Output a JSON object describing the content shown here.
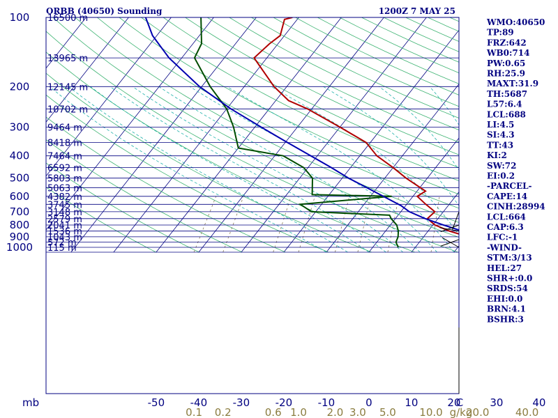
{
  "header": {
    "station": "ORBB (40650) Sounding",
    "time": "1200Z  7 MAY 25"
  },
  "colors": {
    "frame": "#000080",
    "text": "#000080",
    "isobar": "#000080",
    "isotherm": "#000080",
    "dry_adiabat": "#3cb371",
    "moist_adiabat": "#20b2aa",
    "mixing_ratio": "#8b7d5a",
    "temperature": "#b00000",
    "dewpoint": "#004d00",
    "parcel": "#0000b0",
    "wind": "#000000",
    "mixing_label": "#8b7d40"
  },
  "indices": [
    "WMO:40650",
    "TP:89",
    "FRZ:642",
    "WB0:714",
    "PW:0.65",
    "RH:25.9",
    "MAXT:31.9",
    "TH:5687",
    "L57:6.4",
    "LCL:688",
    "LI:4.5",
    "SI:4.3",
    "TT:43",
    "KI:2",
    "SW:72",
    "EI:0.2",
    "-PARCEL-",
    "CAPE:14",
    "CINH:28994",
    "LCL:664",
    "CAP:6.3",
    "LFC:-1",
    "-WIND-",
    "STM:3/13",
    "HEL:27",
    "SHR+:0.0",
    "SRDS:54",
    "EHI:0.0",
    "BRN:4.1",
    "BSHR:3"
  ],
  "chart_data": {
    "type": "line",
    "chart_kind": "skew-T log-P",
    "x_unit_label": "mb",
    "mixing_unit_label": "g/kg",
    "temperature_ticks": [
      "-50",
      "-40",
      "-30",
      "-20",
      "-10",
      "0",
      "10",
      "20",
      "30",
      "40",
      "C"
    ],
    "temperature_tick_values": [
      -50,
      -40,
      -30,
      -20,
      -10,
      0,
      10,
      20,
      30,
      40
    ],
    "pressure_ticks": [
      "100",
      "200",
      "300",
      "400",
      "500",
      "600",
      "700",
      "800",
      "900",
      "1000"
    ],
    "pressure_tick_values": [
      100,
      200,
      300,
      400,
      500,
      600,
      700,
      800,
      900,
      1000
    ],
    "pressure_range": [
      100,
      1050
    ],
    "mixing_ratio_labels": [
      {
        "text": "0.1",
        "value": 0.1
      },
      {
        "text": "0.2",
        "value": 0.2
      },
      {
        "text": "0.6",
        "value": 0.6
      },
      {
        "text": "1.0",
        "value": 1.0
      },
      {
        "text": "2.0",
        "value": 2.0
      },
      {
        "text": "3.0",
        "value": 3.0
      },
      {
        "text": "5.0",
        "value": 5.0
      },
      {
        "text": "10.0",
        "value": 10.0
      },
      {
        "text": "20.0",
        "value": 20.0
      },
      {
        "text": "40.0",
        "value": 40.0
      }
    ],
    "heights": [
      {
        "p": 100,
        "label": "16500 m"
      },
      {
        "p": 150,
        "label": "13965 m"
      },
      {
        "p": 200,
        "label": "12145 m"
      },
      {
        "p": 250,
        "label": "10702 m"
      },
      {
        "p": 300,
        "label": "9464 m"
      },
      {
        "p": 350,
        "label": "8418 m"
      },
      {
        "p": 400,
        "label": "7464 m"
      },
      {
        "p": 450,
        "label": "6592 m"
      },
      {
        "p": 500,
        "label": "5803 m"
      },
      {
        "p": 550,
        "label": "5063 m"
      },
      {
        "p": 600,
        "label": "4382 m"
      },
      {
        "p": 650,
        "label": "3745 m"
      },
      {
        "p": 700,
        "label": "3148 m"
      },
      {
        "p": 750,
        "label": "2579 m"
      },
      {
        "p": 800,
        "label": "2041 m"
      },
      {
        "p": 850,
        "label": "1536 m"
      },
      {
        "p": 900,
        "label": "1043 m"
      },
      {
        "p": 950,
        "label": "572 m"
      },
      {
        "p": 1000,
        "label": "115 m"
      }
    ],
    "series": [
      {
        "key": "temperature",
        "points": [
          [
            1000,
            34.5
          ],
          [
            990,
            31.5
          ],
          [
            950,
            26.5
          ],
          [
            900,
            20.5
          ],
          [
            850,
            15.0
          ],
          [
            800,
            10.5
          ],
          [
            750,
            7.5
          ],
          [
            700,
            8.0
          ],
          [
            650,
            4.5
          ],
          [
            600,
            1.0
          ],
          [
            570,
            2.0
          ],
          [
            500,
            -5.0
          ],
          [
            450,
            -10.0
          ],
          [
            400,
            -16.0
          ],
          [
            350,
            -21.0
          ],
          [
            300,
            -30.0
          ],
          [
            250,
            -41.0
          ],
          [
            230,
            -47.0
          ],
          [
            200,
            -53.0
          ],
          [
            150,
            -63.0
          ],
          [
            130,
            -62.0
          ],
          [
            120,
            -61.0
          ],
          [
            102,
            -63.0
          ],
          [
            100,
            -61.5
          ]
        ]
      },
      {
        "key": "dewpoint",
        "points": [
          [
            1000,
            6.0
          ],
          [
            950,
            4.5
          ],
          [
            900,
            4.0
          ],
          [
            850,
            3.0
          ],
          [
            800,
            1.5
          ],
          [
            750,
            -1.0
          ],
          [
            725,
            -2.0
          ],
          [
            700,
            -21.0
          ],
          [
            650,
            -25.0
          ],
          [
            600,
            -5.0
          ],
          [
            590,
            -24.0
          ],
          [
            500,
            -27.0
          ],
          [
            450,
            -31.0
          ],
          [
            400,
            -38.0
          ],
          [
            370,
            -50.0
          ],
          [
            300,
            -55.0
          ],
          [
            250,
            -60.0
          ],
          [
            200,
            -68.0
          ],
          [
            150,
            -77.0
          ],
          [
            130,
            -78.0
          ],
          [
            100,
            -83.0
          ]
        ]
      },
      {
        "key": "parcel",
        "points": [
          [
            1000,
            34.5
          ],
          [
            950,
            29.0
          ],
          [
            900,
            23.5
          ],
          [
            850,
            18.0
          ],
          [
            800,
            12.5
          ],
          [
            750,
            7.0
          ],
          [
            700,
            2.0
          ],
          [
            660,
            -1.0
          ],
          [
            600,
            -7.0
          ],
          [
            550,
            -12.5
          ],
          [
            500,
            -18.5
          ],
          [
            450,
            -24.5
          ],
          [
            400,
            -31.5
          ],
          [
            350,
            -39.5
          ],
          [
            300,
            -48.5
          ],
          [
            250,
            -59.0
          ],
          [
            200,
            -70.5
          ],
          [
            150,
            -83.0
          ],
          [
            120,
            -91.0
          ],
          [
            100,
            -96.0
          ]
        ]
      }
    ],
    "wind_barbs": [
      {
        "p": 1000,
        "dir": 300,
        "spd": 3
      },
      {
        "p": 925,
        "dir": 250,
        "spd": 8
      },
      {
        "p": 850,
        "dir": 280,
        "spd": 6
      },
      {
        "p": 800,
        "dir": 250,
        "spd": 5
      },
      {
        "p": 700,
        "dir": 200,
        "spd": 5
      }
    ]
  }
}
